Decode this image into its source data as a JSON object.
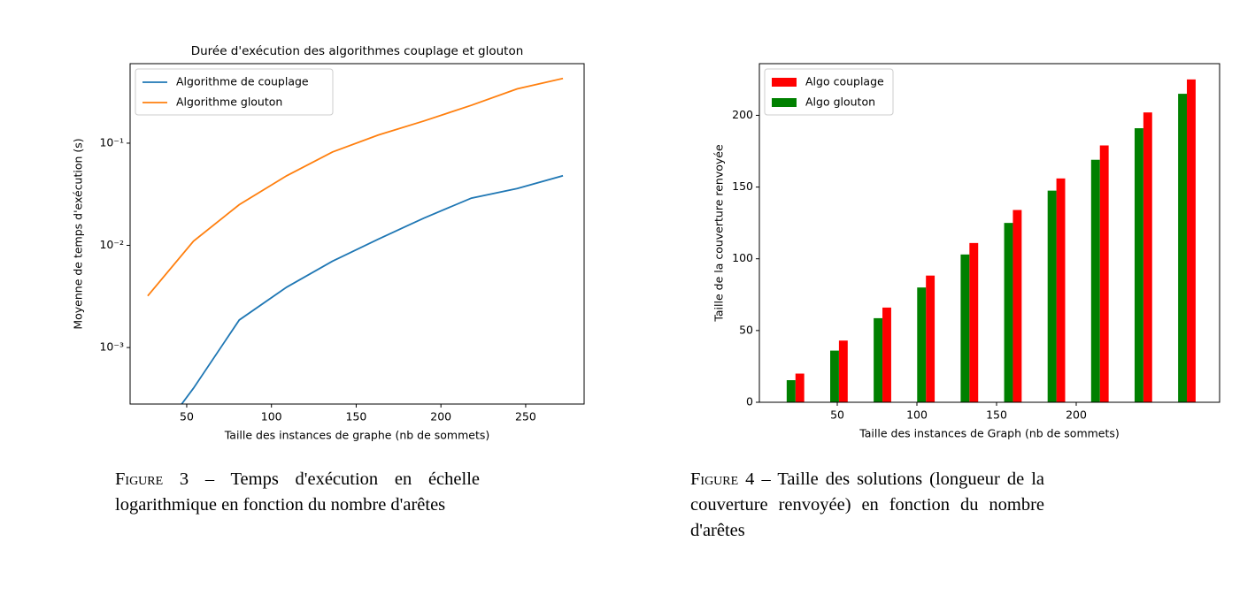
{
  "chart_data": [
    {
      "type": "line",
      "title": "Durée d'exécution des algorithmes couplage et glouton",
      "xlabel": "Taille des instances de graphe (nb de sommets)",
      "ylabel": "Moyenne de temps d'exécution (s)",
      "x": [
        27,
        54,
        81,
        109,
        136,
        163,
        190,
        218,
        245,
        272
      ],
      "series": [
        {
          "name": "Algorithme de couplage",
          "color": "#1f77b4",
          "values": [
            0.0001,
            0.0004,
            0.00186,
            0.0039,
            0.007,
            0.0115,
            0.0185,
            0.029,
            0.036,
            0.048
          ]
        },
        {
          "name": "Algorithme glouton",
          "color": "#ff7f0e",
          "values": [
            0.0032,
            0.011,
            0.025,
            0.048,
            0.082,
            0.12,
            0.165,
            0.235,
            0.34,
            0.43
          ]
        }
      ],
      "xlim": [
        16.6,
        284.5
      ],
      "xticks": [
        50,
        100,
        150,
        200,
        250
      ],
      "ylim": [
        0.00028,
        0.6
      ],
      "yscale": "log",
      "yticks": [
        {
          "value": 0.001,
          "label": "10⁻³"
        },
        {
          "value": 0.01,
          "label": "10⁻²"
        },
        {
          "value": 0.1,
          "label": "10⁻¹"
        }
      ],
      "legend": "upper left"
    },
    {
      "type": "bar",
      "xlabel": "Taille des instances de Graph (nb de sommets)",
      "ylabel": "Taille de la couverture renvoyée",
      "series": [
        {
          "name": "Algo couplage",
          "color": "#ff0000",
          "x": [
            26.5,
            53.8,
            81.1,
            108.4,
            135.7,
            163,
            190.3,
            217.6,
            244.9,
            272.2
          ],
          "values": [
            20,
            43,
            66,
            88.3,
            111,
            134,
            156,
            179,
            202,
            225
          ]
        },
        {
          "name": "Algo glouton",
          "color": "#008000",
          "x": [
            21,
            48.3,
            75.6,
            102.9,
            130.2,
            157.5,
            184.8,
            212.1,
            239.4,
            266.7
          ],
          "values": [
            15.4,
            36,
            58.6,
            80,
            103,
            125,
            147.5,
            169,
            191,
            215
          ]
        }
      ],
      "xlim": [
        1.1,
        290
      ],
      "xticks": [
        50,
        100,
        150,
        200
      ],
      "ylim": [
        0,
        236
      ],
      "yticks": [
        0,
        50,
        100,
        150,
        200
      ],
      "legend": "upper left"
    }
  ],
  "captions": [
    {
      "label": "Figure 3",
      "text": "– Temps d'exécution en échelle logarithmique en fonction du nombre d'arêtes"
    },
    {
      "label": "Figure 4",
      "text": "– Taille des solutions (longueur de la couverture renvoyée) en fonction du nombre d'arêtes"
    }
  ]
}
